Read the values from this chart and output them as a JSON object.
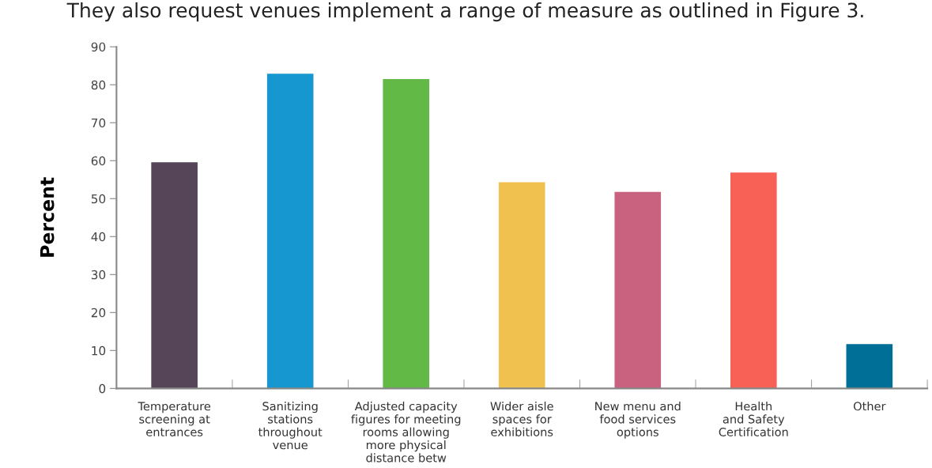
{
  "chart_data": {
    "type": "bar",
    "title": "They also request venues implement a range of measure as outlined in Figure 3.",
    "ylabel": "Percent",
    "categories": [
      "Temperature\nscreening at\nentrances",
      "Sanitizing\nstations\nthroughout\nvenue",
      "Adjusted capacity\nfigures for meeting\nrooms allowing\nmore physical\ndistance betw",
      "Wider aisle\nspaces for\nexhibitions",
      "New menu and\nfood services\noptions",
      "Health\nand Safety\nCertification",
      "Other"
    ],
    "values": [
      59.6,
      82.9,
      81.5,
      54.3,
      51.8,
      56.9,
      11.7
    ],
    "colors": [
      "#564458",
      "#1697cf",
      "#62b946",
      "#f0c14f",
      "#c9627e",
      "#f76156",
      "#006f98"
    ],
    "ylim": [
      0,
      90
    ],
    "yticks": [
      0,
      10,
      20,
      30,
      40,
      50,
      60,
      70,
      80,
      90
    ],
    "grid": false,
    "legend": false
  }
}
